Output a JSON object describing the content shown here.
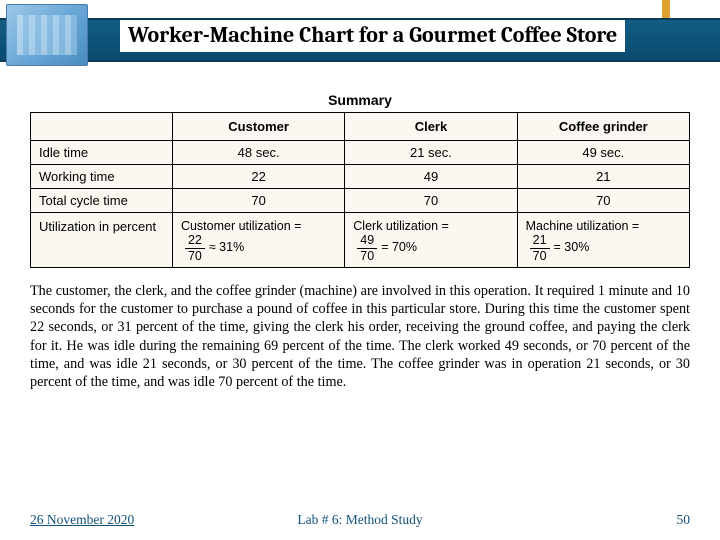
{
  "header": {
    "title": "Worker-Machine Chart for a Gourmet Coffee Store",
    "band_color": "#125d84",
    "accent_color": "#e0a030"
  },
  "summary": {
    "title": "Summary",
    "columns": [
      "",
      "Customer",
      "Clerk",
      "Coffee grinder"
    ],
    "rows": [
      {
        "label": "Idle time",
        "cells": [
          "48 sec.",
          "21 sec.",
          "49 sec."
        ]
      },
      {
        "label": "Working time",
        "cells": [
          "22",
          "49",
          "21"
        ]
      },
      {
        "label": "Total cycle time",
        "cells": [
          "70",
          "70",
          "70"
        ]
      }
    ],
    "util_row_label": "Utilization in percent",
    "util": [
      {
        "label": "Customer utilization =",
        "num": "22",
        "den": "70",
        "approx": "≈ 31%"
      },
      {
        "label": "Clerk utilization =",
        "num": "49",
        "den": "70",
        "approx": "= 70%"
      },
      {
        "label": "Machine utilization =",
        "num": "21",
        "den": "70",
        "approx": "= 30%"
      }
    ],
    "bg_color": "#faf8f0",
    "border_color": "#000000",
    "font_family": "Arial",
    "font_size_pt": 10
  },
  "paragraph": "The customer, the clerk, and the coffee grinder (machine) are involved in this operation. It required 1 minute and 10 seconds for the customer to purchase a pound of coffee in this particular store. During this time the customer spent 22 seconds, or 31 percent of the time, giving the clerk his order, receiving the ground coffee, and paying the clerk for it. He was idle during the remaining 69 percent of the time. The clerk worked 49 seconds, or 70 percent of the time, and was idle 21 seconds, or 30 percent of the time. The coffee grinder was in operation 21 seconds, or 30 percent of the time, and was idle 70 percent of the time.",
  "footer": {
    "date": "26 November 2020",
    "lab": "Lab # 6: Method Study",
    "page": "50",
    "color": "#12517a"
  }
}
